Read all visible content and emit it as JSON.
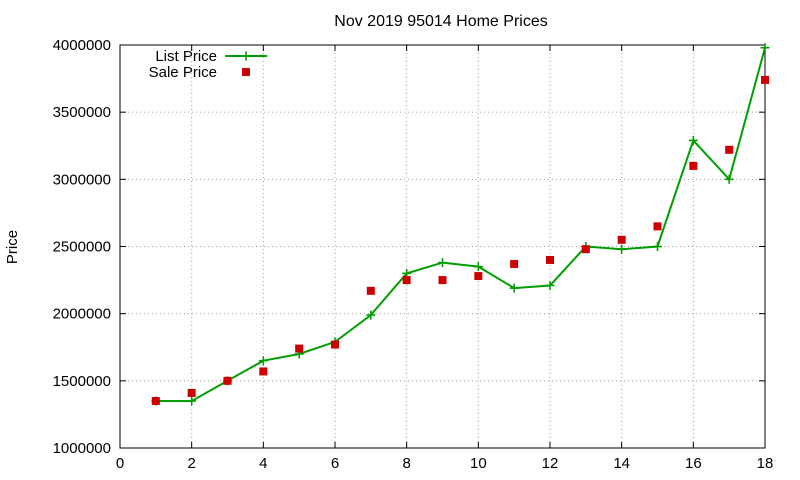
{
  "chart_data": {
    "type": "line",
    "title": "Nov 2019 95014 Home Prices",
    "xlabel": "",
    "ylabel": "Price",
    "xlim": [
      0,
      18
    ],
    "ylim": [
      1000000,
      4000000
    ],
    "xticks": [
      "0",
      "2",
      "4",
      "6",
      "8",
      "10",
      "12",
      "14",
      "16",
      "18"
    ],
    "yticks": [
      "1000000",
      "1500000",
      "2000000",
      "2500000",
      "3000000",
      "3500000",
      "4000000"
    ],
    "grid": true,
    "legend": "top-left",
    "series": [
      {
        "name": "List Price",
        "style": "line-plus",
        "color": "#009e00",
        "x": [
          1,
          2,
          3,
          4,
          5,
          6,
          7,
          8,
          9,
          10,
          11,
          12,
          13,
          14,
          15,
          16,
          17,
          18
        ],
        "values": [
          1350000,
          1350000,
          1500000,
          1650000,
          1700000,
          1790000,
          1990000,
          2300000,
          2380000,
          2350000,
          2190000,
          2210000,
          2500000,
          2480000,
          2500000,
          3290000,
          3000000,
          3980000
        ]
      },
      {
        "name": "Sale Price",
        "style": "square",
        "color": "#cc0000",
        "x": [
          1,
          2,
          3,
          4,
          5,
          6,
          7,
          8,
          9,
          10,
          11,
          12,
          13,
          14,
          15,
          16,
          17,
          18
        ],
        "values": [
          1350000,
          1410000,
          1500000,
          1570000,
          1740000,
          1770000,
          2170000,
          2250000,
          2250000,
          2280000,
          2370000,
          2400000,
          2480000,
          2550000,
          2650000,
          3100000,
          3220000,
          3740000
        ]
      }
    ]
  }
}
